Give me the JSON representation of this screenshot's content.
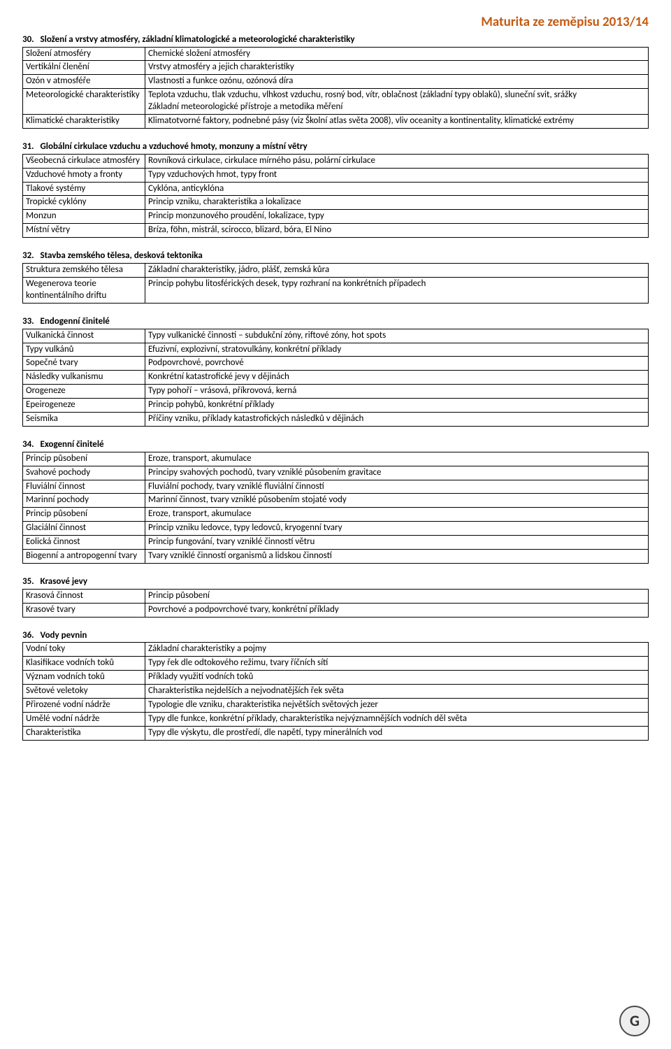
{
  "page_title": "Maturita ze zeměpisu 2013/14",
  "accent_color": "#c55a11",
  "sections": [
    {
      "num": "30.",
      "title": "Složení a vrstvy atmosféry, základní klimatologické a meteorologické charakteristiky",
      "rows": [
        [
          "Složení atmosféry",
          "Chemické složení atmosféry"
        ],
        [
          "Vertikální členění",
          "Vrstvy atmosféry a jejich charakteristiky"
        ],
        [
          "Ozón v atmosféře",
          "Vlastnosti a funkce ozónu, ozónová díra"
        ],
        [
          "Meteorologické charakteristiky",
          "Teplota vzduchu, tlak vzduchu, vlhkost vzduchu, rosný bod, vítr, oblačnost (základní typy oblaků), sluneční svit, srážky\nZákladní meteorologické přístroje a metodika měření"
        ],
        [
          "Klimatické charakteristiky",
          "Klimatotvorné faktory, podnebné pásy (viz Školní atlas světa 2008), vliv oceanity a kontinentality, klimatické extrémy"
        ]
      ]
    },
    {
      "num": "31.",
      "title": "Globální cirkulace vzduchu a vzduchové hmoty, monzuny a místní větry",
      "rows": [
        [
          "Všeobecná cirkulace atmosféry",
          "Rovníková cirkulace, cirkulace mírného pásu, polární cirkulace"
        ],
        [
          "Vzduchové hmoty a fronty",
          "Typy vzduchových hmot, typy front"
        ],
        [
          "Tlakové systémy",
          "Cyklóna, anticyklóna"
        ],
        [
          "Tropické cyklóny",
          "Princip vzniku, charakteristika a lokalizace"
        ],
        [
          "Monzun",
          "Princip monzunového proudění, lokalizace, typy"
        ],
        [
          "Místní větry",
          "Bríza, föhn, mistrál, scirocco, blizard, bóra, El Nino"
        ]
      ]
    },
    {
      "num": "32.",
      "title": "Stavba zemského tělesa, desková tektonika",
      "rows": [
        [
          "Struktura zemského tělesa",
          "Základní charakteristiky, jádro, plášť, zemská kůra"
        ],
        [
          "Wegenerova teorie kontinentálního driftu",
          "Princip pohybu litosférických desek, typy rozhraní na konkrétních případech"
        ]
      ]
    },
    {
      "num": "33.",
      "title": "Endogenní činitelé",
      "rows": [
        [
          "Vulkanická činnost",
          "Typy vulkanické činnosti – subdukční zóny, riftové zóny, hot spots"
        ],
        [
          "Typy vulkánů",
          "Efuzivní, explozivní, stratovulkány, konkrétní příklady"
        ],
        [
          "Sopečné tvary",
          "Podpovrchové, povrchové"
        ],
        [
          "Následky vulkanismu",
          "Konkrétní katastrofické jevy v dějinách"
        ],
        [
          "Orogeneze",
          "Typy pohoří – vrásová, příkrovová, kerná"
        ],
        [
          "Epeirogeneze",
          "Princip pohybů, konkrétní příklady"
        ],
        [
          "Seismika",
          "Příčiny vzniku, příklady katastrofických následků v dějinách"
        ]
      ]
    },
    {
      "num": "34.",
      "title": "Exogenní činitelé",
      "rows": [
        [
          "Princip působení",
          "Eroze, transport, akumulace"
        ],
        [
          "Svahové pochody",
          "Principy svahových pochodů, tvary vzniklé působením gravitace"
        ],
        [
          "Fluviální činnost",
          "Fluviální pochody, tvary vzniklé fluviální činností"
        ],
        [
          "Marinní pochody",
          "Marinní činnost, tvary vzniklé působením stojaté vody"
        ],
        [
          "Princip působení",
          "Eroze, transport, akumulace"
        ],
        [
          "Glaciální činnost",
          "Princip vzniku ledovce, typy ledovců, kryogenní tvary"
        ],
        [
          "Eolická činnost",
          "Princip fungování, tvary vzniklé činností větru"
        ],
        [
          "Biogenní a antropogenní tvary",
          "Tvary vzniklé činností organismů a lidskou činností"
        ]
      ]
    },
    {
      "num": "35.",
      "title": "Krasové jevy",
      "rows": [
        [
          "Krasová činnost",
          "Princip působení"
        ],
        [
          "Krasové tvary",
          "Povrchové a podpovrchové tvary, konkrétní příklady"
        ]
      ]
    },
    {
      "num": "36.",
      "title": "Vody pevnin",
      "rows": [
        [
          "Vodní toky",
          "Základní charakteristiky a pojmy"
        ],
        [
          "Klasifikace vodních toků",
          "Typy řek dle odtokového režimu, tvary říčních sítí"
        ],
        [
          "Význam vodních toků",
          "Příklady využití vodních toků"
        ],
        [
          "Světové veletoky",
          "Charakteristika nejdelších a nejvodnatějších řek světa"
        ],
        [
          "Přirozené vodní nádrže",
          "Typologie dle vzniku, charakteristika největších světových jezer"
        ],
        [
          "Umělé vodní nádrže",
          "Typy dle funkce, konkrétní příklady, charakteristika nejvýznamnějších vodních děl světa"
        ],
        [
          "Charakteristika",
          "Typy dle výskytu, dle prostředí, dle napětí, typy minerálních vod"
        ]
      ]
    }
  ],
  "logo_letter": "G"
}
